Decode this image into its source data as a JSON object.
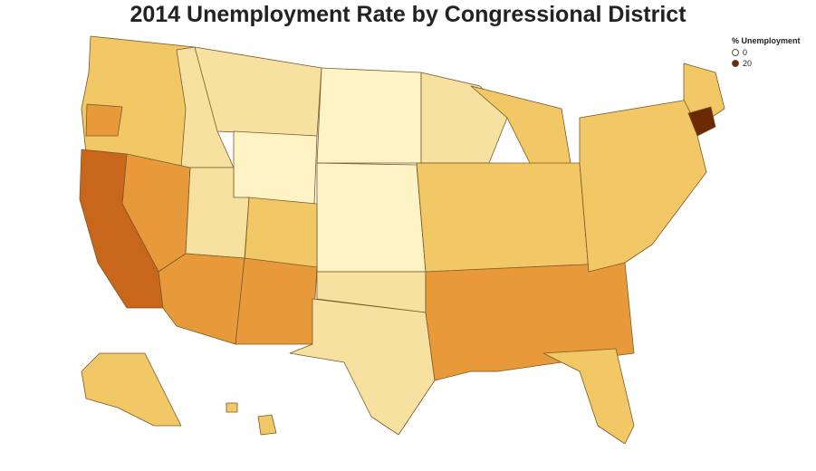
{
  "title": "2014 Unemployment Rate by Congressional District",
  "legend": {
    "title": "% Unemployment",
    "items": [
      {
        "label": "0",
        "color": "#fffbe6"
      },
      {
        "label": "20",
        "color": "#6b2a05"
      }
    ]
  },
  "palette": {
    "very_low": "#fdf3c4",
    "low": "#f6e1a0",
    "mid": "#f2c766",
    "high": "#e89a3a",
    "very_high": "#c8661c",
    "extreme": "#6b2a05"
  },
  "regions": [
    {
      "name": "northwest",
      "level": "mid"
    },
    {
      "name": "oregon-coast",
      "level": "high"
    },
    {
      "name": "montana",
      "level": "low"
    },
    {
      "name": "idaho",
      "level": "low"
    },
    {
      "name": "wyoming",
      "level": "very_low"
    },
    {
      "name": "dakotas",
      "level": "very_low"
    },
    {
      "name": "nebraska-kansas",
      "level": "very_low"
    },
    {
      "name": "nevada",
      "level": "high"
    },
    {
      "name": "california",
      "level": "very_high"
    },
    {
      "name": "utah",
      "level": "low"
    },
    {
      "name": "colorado",
      "level": "mid"
    },
    {
      "name": "arizona",
      "level": "high"
    },
    {
      "name": "new-mexico",
      "level": "high"
    },
    {
      "name": "texas",
      "level": "low"
    },
    {
      "name": "oklahoma",
      "level": "low"
    },
    {
      "name": "upper-midwest",
      "level": "low"
    },
    {
      "name": "michigan",
      "level": "mid"
    },
    {
      "name": "midwest-central",
      "level": "mid"
    },
    {
      "name": "mississippi",
      "level": "very_high"
    },
    {
      "name": "southeast",
      "level": "high"
    },
    {
      "name": "florida",
      "level": "mid"
    },
    {
      "name": "northeast",
      "level": "mid"
    },
    {
      "name": "maine",
      "level": "mid"
    },
    {
      "name": "massachusetts-hotspot",
      "level": "extreme"
    },
    {
      "name": "alaska",
      "level": "mid"
    },
    {
      "name": "hawaii",
      "level": "mid"
    }
  ]
}
